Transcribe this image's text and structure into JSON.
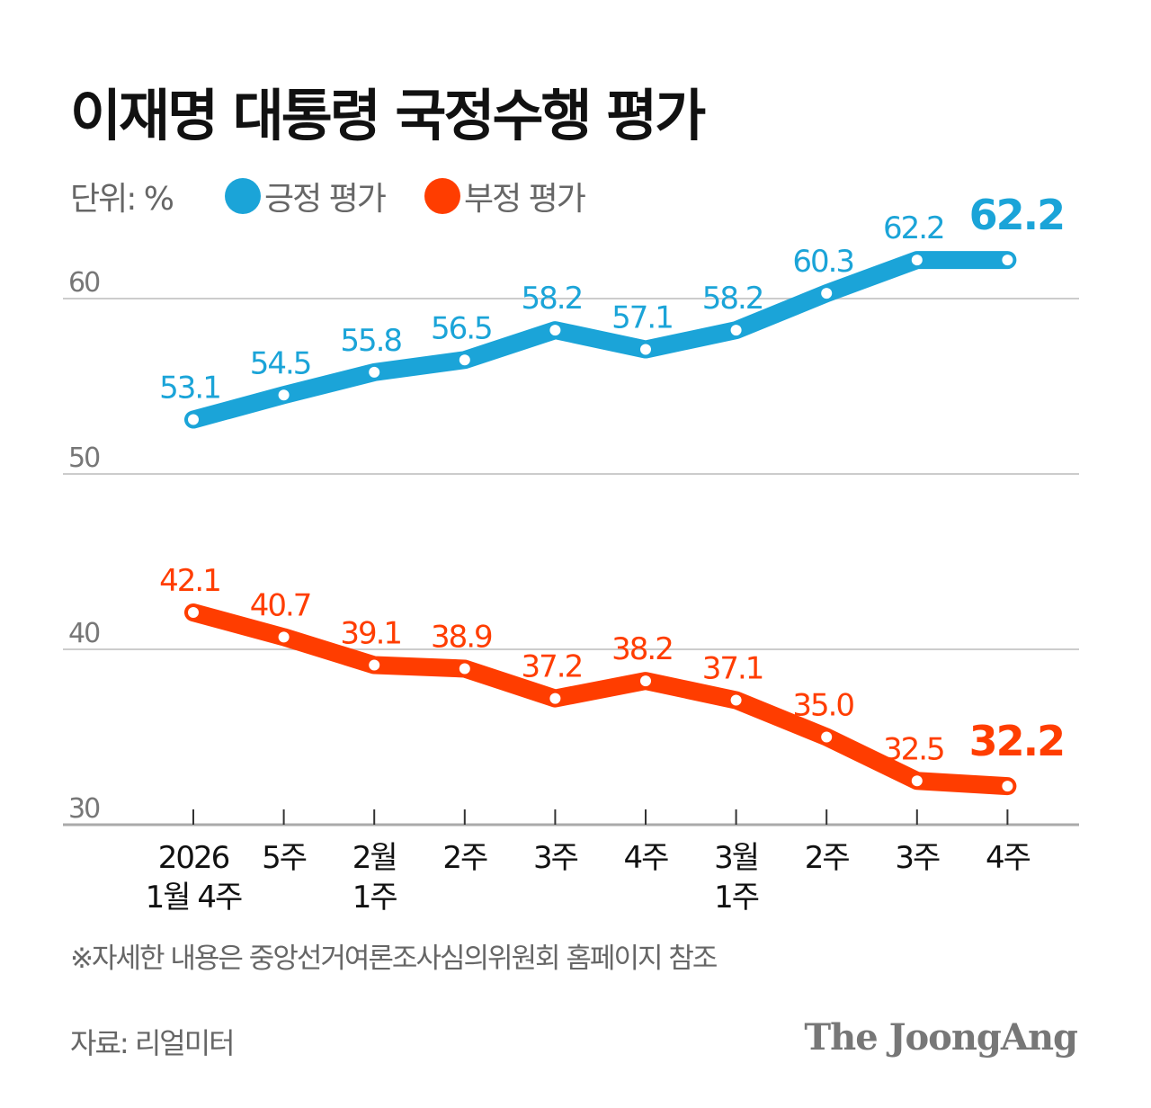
{
  "title": "이재명 대통령 국정수행 평가",
  "unit": "단위: %",
  "note": "※자세한 내용은 중앙선거여론조사심의위원회 홈페이지 참조",
  "source": "자료: 리얼미터",
  "logo": "The JoongAng",
  "colors": {
    "positive": "#1ba4d8",
    "negative": "#ff3d00"
  },
  "chart_data": {
    "type": "line",
    "ylim": [
      30,
      62.2
    ],
    "yticks": [
      "60",
      "50",
      "40",
      "30"
    ],
    "grid": true,
    "legend_position": "top-left",
    "categories": [
      [
        "2026",
        "1월 4주"
      ],
      [
        "5주"
      ],
      [
        "2월",
        "1주"
      ],
      [
        "2주"
      ],
      [
        "3주"
      ],
      [
        "4주"
      ],
      [
        "3월",
        "1주"
      ],
      [
        "2주"
      ],
      [
        "3주"
      ],
      [
        "4주"
      ]
    ],
    "series": [
      {
        "name": "긍정 평가",
        "values": [
          53.1,
          54.5,
          55.8,
          56.5,
          58.2,
          57.1,
          58.2,
          60.3,
          62.2,
          62.2
        ],
        "labels": [
          "53.1",
          "54.5",
          "55.8",
          "56.5",
          "58.2",
          "57.1",
          "58.2",
          "60.3",
          "62.2",
          "62.2"
        ]
      },
      {
        "name": "부정 평가",
        "values": [
          42.1,
          40.7,
          39.1,
          38.9,
          37.2,
          38.2,
          37.1,
          35.0,
          32.5,
          32.2
        ],
        "labels": [
          "42.1",
          "40.7",
          "39.1",
          "38.9",
          "37.2",
          "38.2",
          "37.1",
          "35.0",
          "32.5",
          "32.2"
        ]
      }
    ]
  }
}
